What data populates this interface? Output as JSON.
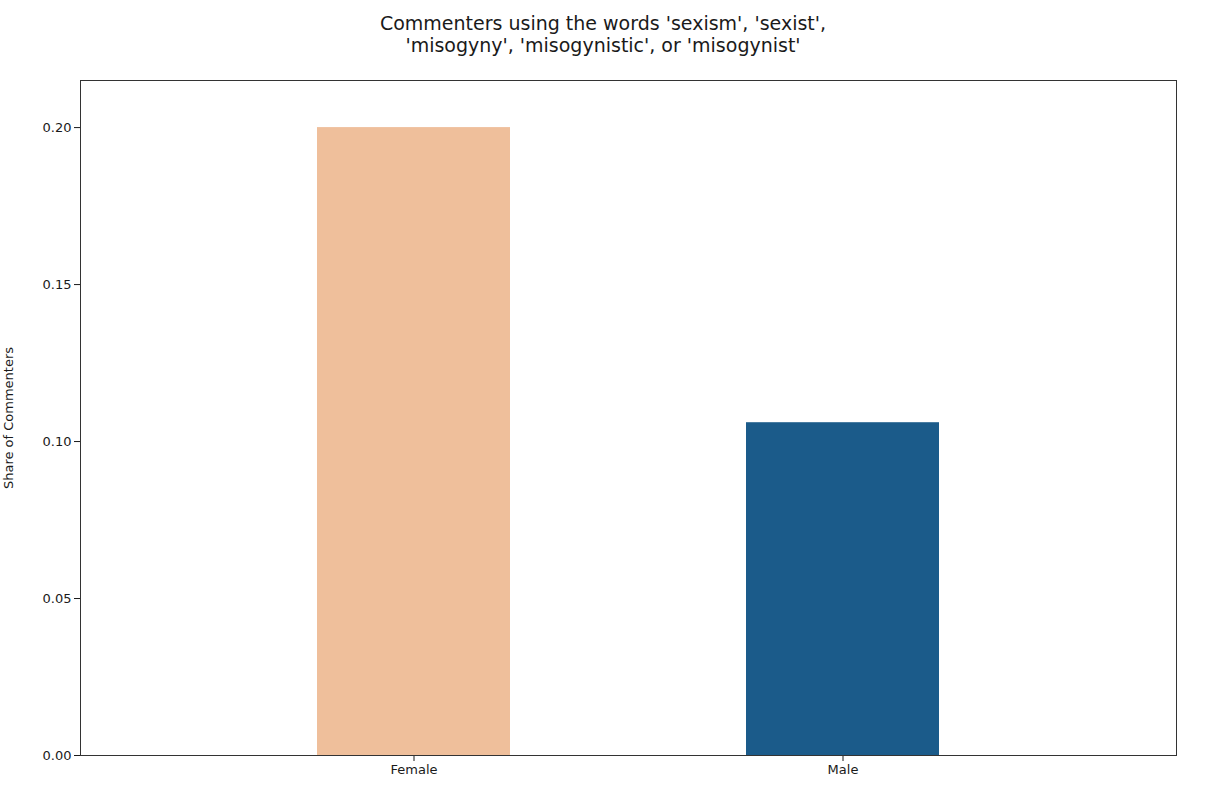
{
  "chart_data": {
    "type": "bar",
    "title": "Commenters using the words 'sexism', 'sexist',\n'misogyny', 'misogynistic', or 'misogynist'",
    "ylabel": "Share of Commenters",
    "categories": [
      "Female",
      "Male"
    ],
    "values": [
      0.2,
      0.106
    ],
    "colors": [
      "#EFBF9B",
      "#1B5B8A"
    ],
    "ylim": [
      0,
      0.215
    ],
    "yticks": [
      {
        "value": 0,
        "label": "0.00"
      },
      0.05,
      {
        "value": 0.1,
        "label": "0.10"
      },
      0.15,
      {
        "value": 0.2,
        "label": "0.20"
      }
    ],
    "grid": false
  }
}
